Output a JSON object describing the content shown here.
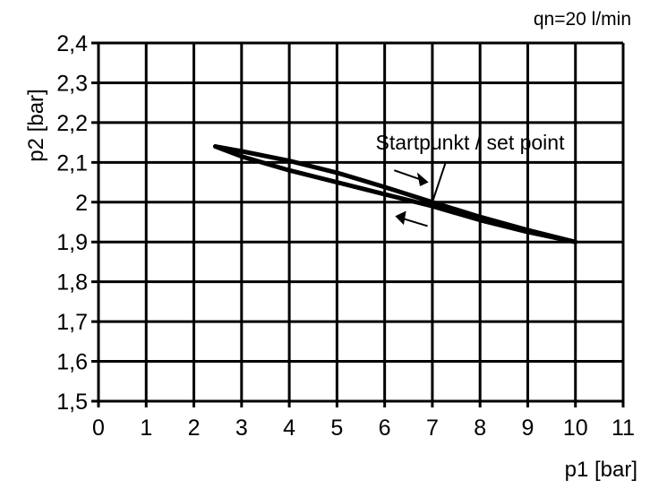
{
  "chart_data": {
    "type": "line",
    "title": "",
    "annotation_top_right": "qn=20 l/min",
    "xlabel": "p1 [bar]",
    "ylabel": "p2 [bar]",
    "xlim": [
      0,
      11
    ],
    "ylim": [
      1.5,
      2.4
    ],
    "grid": true,
    "x_ticks": [
      0,
      1,
      2,
      3,
      4,
      5,
      6,
      7,
      8,
      9,
      10,
      11
    ],
    "x_tick_labels": [
      "0",
      "1",
      "2",
      "3",
      "4",
      "5",
      "6",
      "7",
      "8",
      "9",
      "10",
      "11"
    ],
    "y_ticks": [
      1.5,
      1.6,
      1.7,
      1.8,
      1.9,
      2.0,
      2.1,
      2.2,
      2.3,
      2.4
    ],
    "y_tick_labels": [
      "1,5",
      "1,6",
      "1,7",
      "1,8",
      "1,9",
      "2",
      "2,1",
      "2,2",
      "2,3",
      "2,4"
    ],
    "series": [
      {
        "direction": "increasing",
        "x": [
          2.45,
          3,
          4,
          5,
          6,
          7,
          8,
          9,
          10
        ],
        "y": [
          2.14,
          2.128,
          2.104,
          2.074,
          2.038,
          2.0,
          1.963,
          1.93,
          1.9
        ]
      },
      {
        "direction": "decreasing",
        "x": [
          10,
          9,
          8,
          7,
          6,
          5,
          4,
          3,
          2.45
        ],
        "y": [
          1.9,
          1.925,
          1.955,
          1.99,
          2.02,
          2.05,
          2.08,
          2.115,
          2.14
        ]
      }
    ],
    "annotations": [
      {
        "text": "Startpunkt / set point",
        "points_to": [
          7,
          2.0
        ]
      }
    ],
    "colors": {
      "line": "#000000",
      "background": "#ffffff"
    }
  }
}
